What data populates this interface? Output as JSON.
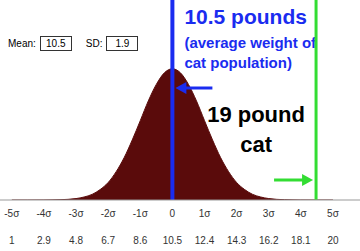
{
  "chart_data": {
    "type": "area",
    "x": [
      1,
      1.95,
      2.9,
      3.85,
      4.8,
      5.275,
      5.75,
      6.225,
      6.7,
      7.175,
      7.65,
      8.125,
      8.6,
      9.075,
      9.55,
      10.025,
      10.5,
      10.975,
      11.45,
      11.925,
      12.4,
      12.875,
      13.35,
      13.825,
      14.3,
      14.775,
      15.25,
      15.725,
      16.2,
      17.15,
      18.1,
      19.05,
      20
    ],
    "values": [
      0,
      0,
      0.0001,
      0.0005,
      0.0023,
      0.0048,
      0.009,
      0.0167,
      0.028,
      0.0454,
      0.068,
      0.0961,
      0.127,
      0.1585,
      0.185,
      0.2035,
      0.21,
      0.2035,
      0.185,
      0.1585,
      0.127,
      0.0961,
      0.068,
      0.0454,
      0.028,
      0.0167,
      0.009,
      0.0048,
      0.0023,
      0.0005,
      0.0001,
      0,
      0
    ],
    "color": "#5a0b0b",
    "xlim": [
      0.3,
      21.6
    ],
    "ylim": [
      0,
      0.32
    ],
    "xticks": [
      {
        "value": 1,
        "label": [
          "-5σ",
          "1"
        ]
      },
      {
        "value": 2.9,
        "label": [
          "-4σ",
          "2.9"
        ]
      },
      {
        "value": 4.8,
        "label": [
          "-3σ",
          "4.8"
        ]
      },
      {
        "value": 6.7,
        "label": [
          "-2σ",
          "6.7"
        ]
      },
      {
        "value": 8.6,
        "label": [
          "-1σ",
          "8.6"
        ]
      },
      {
        "value": 10.5,
        "label": [
          "0",
          "10.5"
        ]
      },
      {
        "value": 12.4,
        "label": [
          "1σ",
          "12.4"
        ]
      },
      {
        "value": 14.3,
        "label": [
          "2σ",
          "14.3"
        ]
      },
      {
        "value": 16.2,
        "label": [
          "3σ",
          "16.2"
        ]
      },
      {
        "value": 18.1,
        "label": [
          "4σ",
          "18.1"
        ]
      },
      {
        "value": 20,
        "label": [
          "5σ",
          "20"
        ]
      }
    ],
    "tick_labels": "x",
    "stats": [
      {
        "label": "Mean:",
        "value": 10.5
      },
      {
        "label": "SD:",
        "value": 1.9
      }
    ],
    "annotations": [
      {
        "x": 10.5,
        "text": [
          "10.5 pounds",
          "(average weight of",
          "cat population)"
        ],
        "color": "#1a2cf0",
        "text_color": "#1a2cf0"
      },
      {
        "x": 19,
        "text": [
          "19 pound",
          "cat"
        ],
        "color": "#33dd33",
        "text_color": "#000000"
      }
    ]
  }
}
